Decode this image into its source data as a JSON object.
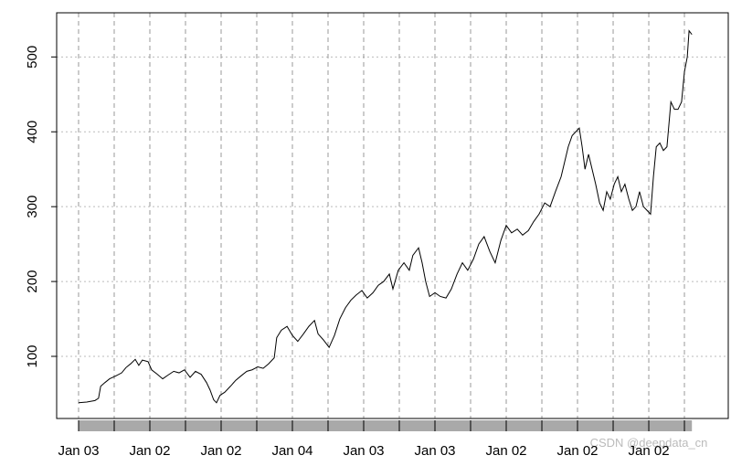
{
  "chart_data": {
    "type": "line",
    "x": [
      0,
      2.3,
      4.6,
      5.6,
      6.2,
      7.4,
      8.7,
      10.5,
      12.1,
      13.3,
      14.6,
      15.9,
      16.9,
      17.9,
      19.5,
      20.5,
      22.1,
      23.6,
      25.1,
      26.7,
      28.2,
      29.7,
      31.3,
      32.8,
      34.4,
      35.9,
      36.9,
      37.9,
      38.7,
      39.7,
      41.0,
      42.6,
      44.1,
      45.6,
      47.2,
      48.7,
      50.3,
      51.8,
      53.3,
      54.9,
      55.6,
      56.9,
      58.5,
      60.0,
      61.5,
      63.1,
      64.6,
      66.2,
      67.2,
      68.7,
      70.3,
      71.8,
      73.3,
      74.9,
      76.4,
      77.9,
      79.5,
      81.0,
      82.6,
      84.1,
      85.6,
      87.2,
      88.2,
      89.7,
      91.3,
      92.8,
      93.8,
      95.4,
      96.4,
      97.4,
      98.5,
      100.0,
      101.5,
      103.1,
      104.6,
      106.2,
      107.7,
      109.2,
      110.8,
      112.3,
      113.8,
      115.4,
      116.9,
      118.5,
      120.0,
      121.5,
      123.1,
      124.6,
      126.2,
      127.7,
      129.2,
      130.8,
      132.3,
      133.8,
      135.4,
      136.4,
      137.4,
      138.5,
      139.5,
      140.5,
      141.3,
      142.1,
      143.1,
      144.1,
      145.1,
      146.2,
      147.2,
      148.2,
      149.2,
      150.3,
      151.3,
      152.3,
      153.3,
      154.4,
      155.4,
      156.4,
      157.4,
      158.5,
      159.5,
      160.5,
      161.3,
      162.1,
      163.1,
      164.1,
      165.1,
      166.2,
      167.2,
      168.2,
      169.2,
      170.0,
      170.8,
      171.3,
      172.1
    ],
    "series": [
      {
        "color": "#000000",
        "values": [
          38,
          39,
          41,
          44,
          60,
          65,
          70,
          74,
          78,
          85,
          90,
          96,
          88,
          95,
          93,
          82,
          76,
          70,
          75,
          80,
          78,
          82,
          72,
          80,
          76,
          65,
          55,
          42,
          38,
          48,
          52,
          60,
          68,
          74,
          80,
          82,
          86,
          84,
          90,
          98,
          125,
          135,
          140,
          128,
          120,
          130,
          140,
          148,
          130,
          122,
          112,
          128,
          150,
          165,
          175,
          182,
          188,
          178,
          185,
          195,
          200,
          210,
          190,
          215,
          225,
          215,
          235,
          245,
          225,
          200,
          180,
          185,
          180,
          178,
          190,
          210,
          225,
          215,
          230,
          250,
          260,
          240,
          225,
          255,
          275,
          265,
          270,
          262,
          268,
          280,
          290,
          305,
          300,
          320,
          340,
          360,
          380,
          395,
          400,
          405,
          380,
          350,
          370,
          350,
          330,
          305,
          295,
          320,
          310,
          330,
          340,
          320,
          330,
          310,
          295,
          300,
          320,
          300,
          295,
          290,
          340,
          380,
          385,
          375,
          380,
          440,
          430,
          430,
          440,
          480,
          500,
          535,
          530
        ]
      }
    ],
    "xlim": [
      -6.15,
      182.3
    ],
    "ylim": [
      17,
      559
    ],
    "xticks": [
      {
        "value": 0,
        "label": "Jan 03"
      },
      {
        "value": 20,
        "label": "Jan 02"
      },
      {
        "value": 40,
        "label": "Jan 02"
      },
      {
        "value": 60,
        "label": "Jan 04"
      },
      {
        "value": 80,
        "label": "Jan 03"
      },
      {
        "value": 100,
        "label": "Jan 03"
      },
      {
        "value": 120,
        "label": "Jan 02"
      },
      {
        "value": 140,
        "label": "Jan 02"
      },
      {
        "value": 160,
        "label": "Jan 02"
      }
    ],
    "x_gridlines": [
      10,
      30,
      50,
      70,
      90,
      110,
      130,
      150,
      170
    ],
    "yticks": [
      100,
      200,
      300,
      400,
      500
    ],
    "grid": true,
    "watermark": "CSDN @deepdata_cn"
  }
}
